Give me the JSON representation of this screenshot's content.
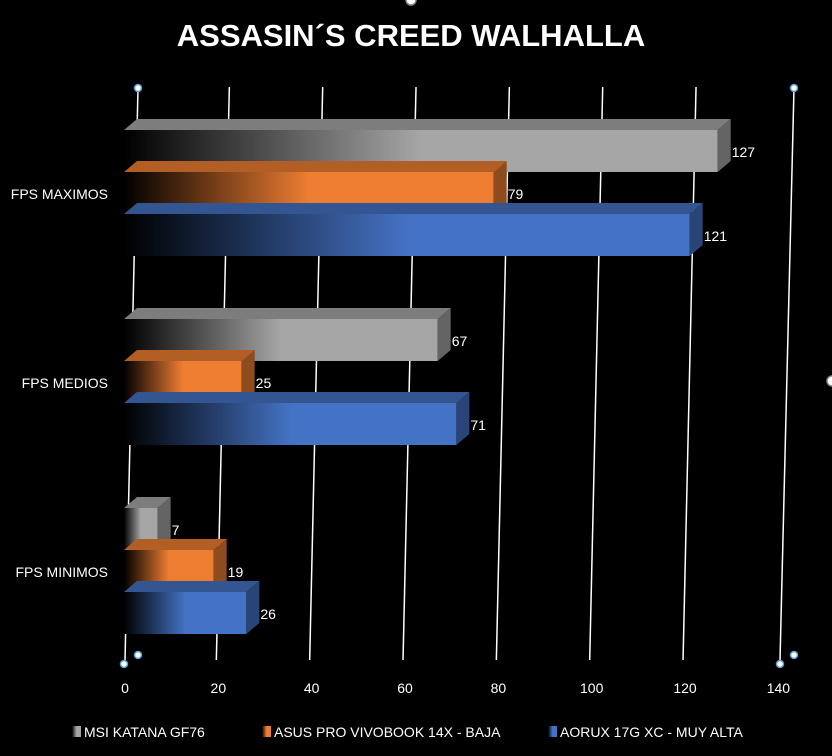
{
  "chart_data": {
    "type": "bar",
    "orientation": "horizontal",
    "title": "ASSASIN´S CREED WALHALLA",
    "categories": [
      "FPS MAXIMOS",
      "FPS MEDIOS",
      "FPS MINIMOS"
    ],
    "series": [
      {
        "name": "MSI KATANA GF76",
        "values": [
          127,
          67,
          7
        ],
        "color": "#a6a6a6"
      },
      {
        "name": "ASUS PRO VIVOBOOK 14X - BAJA",
        "values": [
          79,
          25,
          19
        ],
        "color": "#ed7d31"
      },
      {
        "name": "AORUX 17G XC - MUY ALTA",
        "values": [
          121,
          71,
          26
        ],
        "color": "#4472c4"
      }
    ],
    "x_ticks": [
      "0",
      "20",
      "40",
      "60",
      "80",
      "100",
      "120",
      "140"
    ],
    "xlim": [
      0,
      140
    ],
    "grid": true,
    "legend_position": "bottom",
    "style": "3d-gradient"
  }
}
